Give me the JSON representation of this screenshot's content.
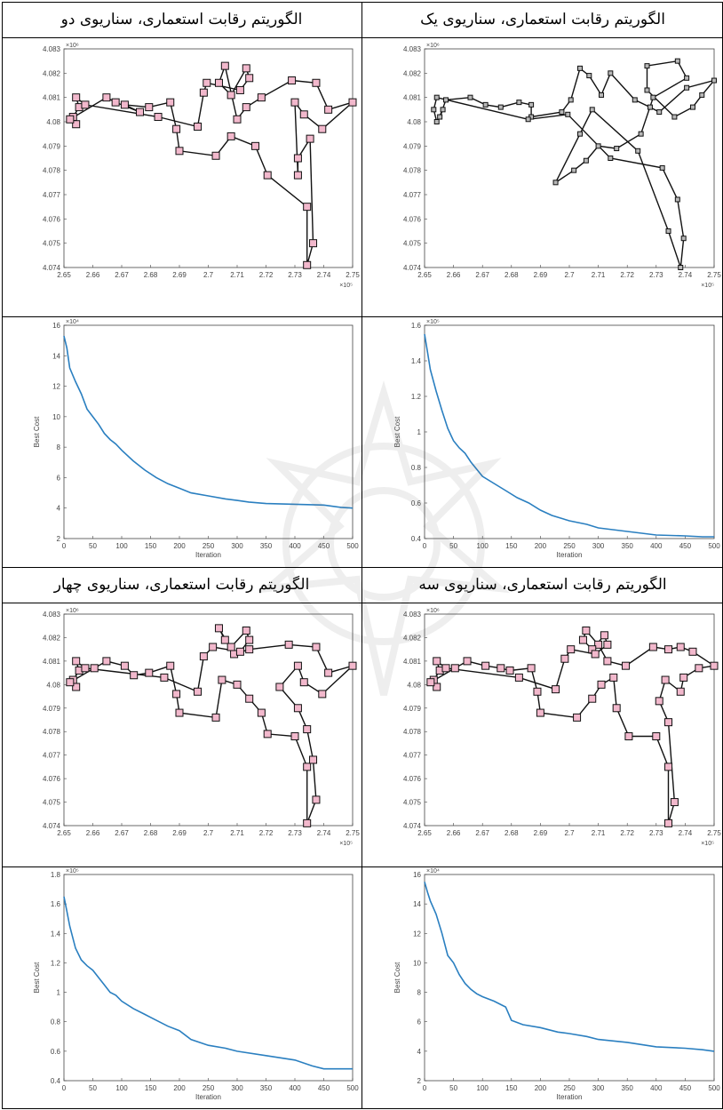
{
  "headers": {
    "r1_left": "الگوریتم رقابت استعماری، سناریوی دو",
    "r1_right": "الگوریتم رقابت استعماری، سناریوی یک",
    "r3_left": "الگوریتم رقابت استعماری، سناریوی چهار",
    "r3_right": "الگوریتم رقابت استعماری، سناریوی سه"
  },
  "colors": {
    "route_marker": "#f2b8cc",
    "route_marker_gray": "#b8b8b8",
    "cost_line": "#2a7fc0"
  },
  "chart_data": [
    {
      "id": "route-s2",
      "type": "line",
      "title": "",
      "xlim": [
        265500,
        275000
      ],
      "ylim": [
        4074000,
        4083000
      ],
      "xticks": [
        "2.65",
        "2.66",
        "2.67",
        "2.68",
        "2.69",
        "2.7",
        "2.71",
        "2.72",
        "2.73",
        "2.74",
        "2.75"
      ],
      "yticks": [
        "4.074",
        "4.075",
        "4.076",
        "4.077",
        "4.078",
        "4.079",
        "4.08",
        "4.081",
        "4.082",
        "4.083"
      ],
      "xexp": "×10⁵",
      "yexp": "×10⁶",
      "points": [
        [
          265900,
          4081000
        ],
        [
          266000,
          4080600
        ],
        [
          265800,
          4080200
        ],
        [
          265900,
          4079900
        ],
        [
          265700,
          4080100
        ],
        [
          266900,
          4081000
        ],
        [
          267200,
          4080800
        ],
        [
          268000,
          4080400
        ],
        [
          267500,
          4080700
        ],
        [
          268300,
          4080600
        ],
        [
          269000,
          4080800
        ],
        [
          269200,
          4079700
        ],
        [
          269300,
          4078800
        ],
        [
          270500,
          4078600
        ],
        [
          271000,
          4079400
        ],
        [
          271800,
          4079000
        ],
        [
          272200,
          4077800
        ],
        [
          273500,
          4076500
        ],
        [
          273500,
          4074100
        ],
        [
          273700,
          4075000
        ],
        [
          273600,
          4079300
        ],
        [
          273200,
          4078500
        ],
        [
          273200,
          4077800
        ],
        [
          273100,
          4080800
        ],
        [
          273400,
          4080300
        ],
        [
          274000,
          4079700
        ],
        [
          275000,
          4080800
        ],
        [
          274200,
          4080500
        ],
        [
          273800,
          4081600
        ],
        [
          273000,
          4081700
        ],
        [
          272000,
          4081000
        ],
        [
          271500,
          4080600
        ],
        [
          271200,
          4080100
        ],
        [
          270800,
          4082300
        ],
        [
          270600,
          4081600
        ],
        [
          271000,
          4081100
        ],
        [
          271500,
          4082200
        ],
        [
          271600,
          4081800
        ],
        [
          271300,
          4081300
        ],
        [
          270200,
          4081600
        ],
        [
          270100,
          4081200
        ],
        [
          269900,
          4079800
        ],
        [
          268600,
          4080200
        ],
        [
          266200,
          4080700
        ]
      ],
      "closed": true,
      "marker_color": "pink"
    },
    {
      "id": "route-s1",
      "type": "line",
      "title": "",
      "xlim": [
        265500,
        275000
      ],
      "ylim": [
        4074000,
        4083000
      ],
      "xticks": [
        "2.65",
        "2.66",
        "2.67",
        "2.68",
        "2.69",
        "2.7",
        "2.71",
        "2.72",
        "2.73",
        "2.74",
        "2.75"
      ],
      "yticks": [
        "4.074",
        "4.075",
        "4.076",
        "4.077",
        "4.078",
        "4.079",
        "4.08",
        "4.081",
        "4.082",
        "4.083"
      ],
      "xexp": "×10⁵",
      "yexp": "×10⁶",
      "points": [
        [
          265900,
          4081000
        ],
        [
          265800,
          4080500
        ],
        [
          265900,
          4080000
        ],
        [
          266100,
          4080500
        ],
        [
          266000,
          4080200
        ],
        [
          266200,
          4080900
        ],
        [
          267000,
          4081000
        ],
        [
          267500,
          4080700
        ],
        [
          268000,
          4080600
        ],
        [
          268600,
          4080800
        ],
        [
          269000,
          4080700
        ],
        [
          269000,
          4080200
        ],
        [
          270000,
          4080400
        ],
        [
          270300,
          4080900
        ],
        [
          270600,
          4082200
        ],
        [
          270900,
          4081900
        ],
        [
          271300,
          4081100
        ],
        [
          271600,
          4082000
        ],
        [
          272400,
          4080900
        ],
        [
          272900,
          4080600
        ],
        [
          273200,
          4080400
        ],
        [
          274100,
          4081400
        ],
        [
          275000,
          4081700
        ],
        [
          274600,
          4081100
        ],
        [
          274300,
          4080600
        ],
        [
          273700,
          4080200
        ],
        [
          272800,
          4081300
        ],
        [
          272800,
          4082300
        ],
        [
          273800,
          4082500
        ],
        [
          274100,
          4081800
        ],
        [
          273000,
          4081000
        ],
        [
          272600,
          4079500
        ],
        [
          271800,
          4078900
        ],
        [
          271200,
          4079000
        ],
        [
          270800,
          4078400
        ],
        [
          270400,
          4078000
        ],
        [
          269800,
          4077500
        ],
        [
          270600,
          4079500
        ],
        [
          271000,
          4080500
        ],
        [
          272500,
          4078800
        ],
        [
          273500,
          4075500
        ],
        [
          273900,
          4074000
        ],
        [
          274000,
          4075200
        ],
        [
          273800,
          4076800
        ],
        [
          273300,
          4078100
        ],
        [
          271600,
          4078500
        ],
        [
          270200,
          4080300
        ],
        [
          268900,
          4080100
        ]
      ],
      "closed": true,
      "marker_color": "gray"
    },
    {
      "id": "cost-s2",
      "type": "line",
      "title": "",
      "xlabel": "Iteration",
      "ylabel": "Best Cost",
      "xlim": [
        0,
        500
      ],
      "ylim": [
        2,
        16
      ],
      "yexp": "×10⁴",
      "xticks": [
        "0",
        "50",
        "100",
        "150",
        "200",
        "250",
        "300",
        "350",
        "400",
        "450",
        "500"
      ],
      "yticks": [
        "2",
        "4",
        "6",
        "8",
        "10",
        "12",
        "14",
        "16"
      ],
      "x": [
        0,
        5,
        10,
        20,
        30,
        40,
        50,
        60,
        70,
        80,
        90,
        100,
        120,
        140,
        160,
        180,
        200,
        220,
        250,
        280,
        300,
        320,
        350,
        400,
        450,
        480,
        500
      ],
      "y": [
        15.3,
        14.5,
        13.2,
        12.3,
        11.5,
        10.5,
        10.0,
        9.5,
        8.9,
        8.5,
        8.2,
        7.8,
        7.1,
        6.5,
        6.0,
        5.6,
        5.3,
        5.0,
        4.8,
        4.6,
        4.5,
        4.4,
        4.3,
        4.25,
        4.2,
        4.05,
        4.0
      ]
    },
    {
      "id": "cost-s1",
      "type": "line",
      "title": "",
      "xlabel": "Iteration",
      "ylabel": "Best Cost",
      "xlim": [
        0,
        500
      ],
      "ylim": [
        0.4,
        1.6
      ],
      "yexp": "×10⁵",
      "xticks": [
        "0",
        "50",
        "100",
        "150",
        "200",
        "250",
        "300",
        "350",
        "400",
        "450",
        "500"
      ],
      "yticks": [
        "0.4",
        "0.6",
        "0.8",
        "1",
        "1.2",
        "1.4",
        "1.6"
      ],
      "x": [
        0,
        5,
        10,
        20,
        30,
        40,
        50,
        60,
        70,
        80,
        90,
        100,
        120,
        140,
        160,
        180,
        200,
        220,
        250,
        280,
        300,
        350,
        400,
        450,
        480,
        500
      ],
      "y": [
        1.55,
        1.45,
        1.35,
        1.23,
        1.12,
        1.02,
        0.95,
        0.91,
        0.88,
        0.83,
        0.79,
        0.75,
        0.71,
        0.67,
        0.63,
        0.6,
        0.56,
        0.53,
        0.5,
        0.48,
        0.46,
        0.44,
        0.42,
        0.415,
        0.41,
        0.41
      ]
    },
    {
      "id": "route-s4",
      "type": "line",
      "title": "",
      "xlim": [
        265500,
        275000
      ],
      "ylim": [
        4074000,
        4083000
      ],
      "xticks": [
        "2.65",
        "2.66",
        "2.67",
        "2.68",
        "2.69",
        "2.7",
        "2.71",
        "2.72",
        "2.73",
        "2.74",
        "2.75"
      ],
      "yticks": [
        "4.074",
        "4.075",
        "4.076",
        "4.077",
        "4.078",
        "4.079",
        "4.08",
        "4.081",
        "4.082",
        "4.083"
      ],
      "xexp": "×10⁵",
      "yexp": "×10⁶",
      "points": [
        [
          265900,
          4081000
        ],
        [
          266000,
          4080600
        ],
        [
          265800,
          4080200
        ],
        [
          265900,
          4079900
        ],
        [
          265700,
          4080100
        ],
        [
          266500,
          4080700
        ],
        [
          266900,
          4081000
        ],
        [
          267500,
          4080800
        ],
        [
          267800,
          4080400
        ],
        [
          268300,
          4080500
        ],
        [
          269000,
          4080800
        ],
        [
          269200,
          4079600
        ],
        [
          269300,
          4078800
        ],
        [
          270500,
          4078600
        ],
        [
          270700,
          4080200
        ],
        [
          271200,
          4080000
        ],
        [
          271600,
          4079400
        ],
        [
          272000,
          4078800
        ],
        [
          272200,
          4077900
        ],
        [
          273100,
          4077800
        ],
        [
          273500,
          4076500
        ],
        [
          273500,
          4074100
        ],
        [
          273800,
          4075100
        ],
        [
          273700,
          4076800
        ],
        [
          273500,
          4078100
        ],
        [
          273200,
          4079000
        ],
        [
          272600,
          4079900
        ],
        [
          273200,
          4080800
        ],
        [
          273400,
          4080100
        ],
        [
          274000,
          4079600
        ],
        [
          275000,
          4080800
        ],
        [
          274200,
          4080500
        ],
        [
          273800,
          4081600
        ],
        [
          272900,
          4081700
        ],
        [
          271600,
          4081500
        ],
        [
          271100,
          4081300
        ],
        [
          270600,
          4082400
        ],
        [
          270800,
          4081900
        ],
        [
          271000,
          4081600
        ],
        [
          271500,
          4082300
        ],
        [
          271600,
          4081900
        ],
        [
          271300,
          4081400
        ],
        [
          270400,
          4081600
        ],
        [
          270100,
          4081200
        ],
        [
          269900,
          4079700
        ],
        [
          268800,
          4080300
        ],
        [
          266200,
          4080700
        ]
      ],
      "closed": true,
      "marker_color": "pink"
    },
    {
      "id": "route-s3",
      "type": "line",
      "title": "",
      "xlim": [
        265500,
        275000
      ],
      "ylim": [
        4074000,
        4083000
      ],
      "xticks": [
        "2.65",
        "2.66",
        "2.67",
        "2.68",
        "2.69",
        "2.7",
        "2.71",
        "2.72",
        "2.73",
        "2.74",
        "2.75"
      ],
      "yticks": [
        "4.074",
        "4.075",
        "4.076",
        "4.077",
        "4.078",
        "4.079",
        "4.08",
        "4.081",
        "4.082",
        "4.083"
      ],
      "xexp": "×10⁵",
      "yexp": "×10⁶",
      "points": [
        [
          265900,
          4081000
        ],
        [
          266000,
          4080600
        ],
        [
          265800,
          4080200
        ],
        [
          265900,
          4079900
        ],
        [
          265700,
          4080100
        ],
        [
          266500,
          4080700
        ],
        [
          266900,
          4081000
        ],
        [
          267500,
          4080800
        ],
        [
          268000,
          4080700
        ],
        [
          268300,
          4080600
        ],
        [
          269000,
          4080700
        ],
        [
          269200,
          4079700
        ],
        [
          269300,
          4078800
        ],
        [
          270500,
          4078600
        ],
        [
          271000,
          4079400
        ],
        [
          271300,
          4080000
        ],
        [
          271700,
          4080300
        ],
        [
          271800,
          4079000
        ],
        [
          272200,
          4077800
        ],
        [
          273100,
          4077800
        ],
        [
          273500,
          4076500
        ],
        [
          273500,
          4074100
        ],
        [
          273700,
          4075000
        ],
        [
          273500,
          4078400
        ],
        [
          273200,
          4079300
        ],
        [
          273400,
          4080200
        ],
        [
          273900,
          4079700
        ],
        [
          274000,
          4080300
        ],
        [
          274500,
          4080700
        ],
        [
          275000,
          4080800
        ],
        [
          274300,
          4081400
        ],
        [
          273900,
          4081600
        ],
        [
          273500,
          4081500
        ],
        [
          273000,
          4081600
        ],
        [
          272100,
          4080800
        ],
        [
          271500,
          4081000
        ],
        [
          271200,
          4081700
        ],
        [
          270800,
          4082300
        ],
        [
          270700,
          4081900
        ],
        [
          271000,
          4081500
        ],
        [
          271400,
          4082100
        ],
        [
          271500,
          4081700
        ],
        [
          271100,
          4081300
        ],
        [
          270300,
          4081500
        ],
        [
          270100,
          4081100
        ],
        [
          269800,
          4079800
        ],
        [
          268600,
          4080300
        ],
        [
          266200,
          4080700
        ]
      ],
      "closed": true,
      "marker_color": "pink"
    },
    {
      "id": "cost-s4",
      "type": "line",
      "title": "",
      "xlabel": "Iteration",
      "ylabel": "Best Cost",
      "xlim": [
        0,
        500
      ],
      "ylim": [
        0.4,
        1.8
      ],
      "yexp": "×10⁵",
      "xticks": [
        "0",
        "50",
        "100",
        "150",
        "200",
        "250",
        "300",
        "350",
        "400",
        "450",
        "500"
      ],
      "yticks": [
        "0.4",
        "0.6",
        "0.8",
        "1",
        "1.2",
        "1.4",
        "1.6",
        "1.8"
      ],
      "x": [
        0,
        5,
        10,
        20,
        30,
        40,
        50,
        60,
        70,
        80,
        90,
        100,
        120,
        140,
        160,
        180,
        200,
        220,
        250,
        280,
        300,
        350,
        400,
        430,
        450,
        500
      ],
      "y": [
        1.65,
        1.55,
        1.45,
        1.3,
        1.22,
        1.18,
        1.15,
        1.1,
        1.05,
        1.0,
        0.98,
        0.94,
        0.89,
        0.85,
        0.81,
        0.77,
        0.74,
        0.68,
        0.64,
        0.62,
        0.6,
        0.57,
        0.54,
        0.5,
        0.48,
        0.48
      ]
    },
    {
      "id": "cost-s3",
      "type": "line",
      "title": "",
      "xlabel": "Iteration",
      "ylabel": "Best Cost",
      "xlim": [
        0,
        500
      ],
      "ylim": [
        2,
        16
      ],
      "yexp": "×10⁴",
      "xticks": [
        "0",
        "50",
        "100",
        "150",
        "200",
        "250",
        "300",
        "350",
        "400",
        "450",
        "500"
      ],
      "yticks": [
        "2",
        "4",
        "6",
        "8",
        "10",
        "12",
        "14",
        "16"
      ],
      "x": [
        0,
        5,
        10,
        20,
        30,
        40,
        50,
        60,
        70,
        80,
        90,
        100,
        120,
        140,
        150,
        170,
        200,
        230,
        250,
        280,
        300,
        350,
        400,
        450,
        480,
        500
      ],
      "y": [
        15.5,
        14.8,
        14.2,
        13.3,
        12.0,
        10.5,
        10.0,
        9.2,
        8.6,
        8.2,
        7.9,
        7.7,
        7.4,
        7.0,
        6.1,
        5.8,
        5.6,
        5.3,
        5.2,
        5.0,
        4.8,
        4.6,
        4.3,
        4.2,
        4.1,
        4.0
      ]
    }
  ]
}
